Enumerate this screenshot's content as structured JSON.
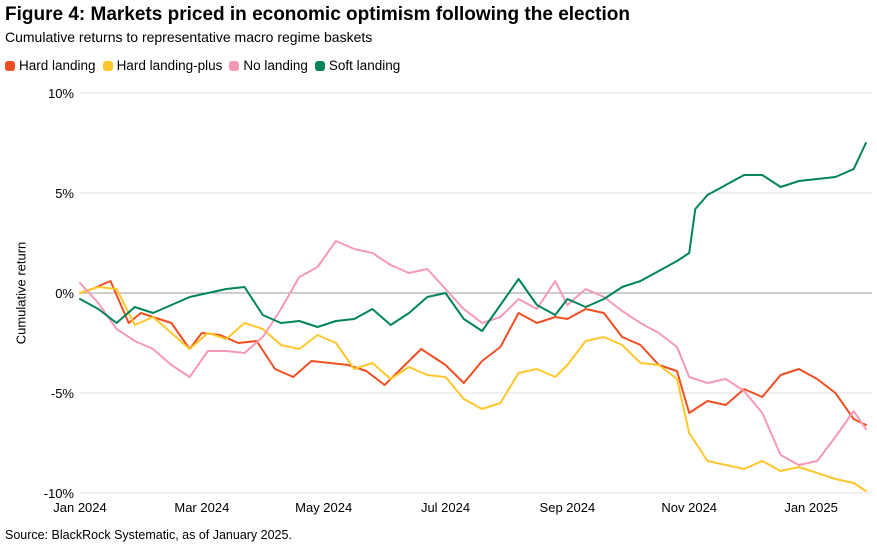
{
  "chart_data": {
    "type": "line",
    "title": "Figure 4: Markets priced in economic optimism following the election",
    "subtitle": "Cumulative returns to representative macro regime baskets",
    "ylabel": "Cumulative return",
    "xlabel": "",
    "ylim": [
      -10,
      10
    ],
    "y_ticks": [
      "10%",
      "5%",
      "0%",
      "-5%",
      "-10%"
    ],
    "y_tick_values": [
      10,
      5,
      0,
      -5,
      -10
    ],
    "x_ticks": [
      "Jan 2024",
      "Mar 2024",
      "May 2024",
      "Jul 2024",
      "Sep 2024",
      "Nov 2024",
      "Jan 2025"
    ],
    "x_tick_values": [
      0,
      2,
      4,
      6,
      8,
      10,
      12
    ],
    "xlim": [
      0,
      13
    ],
    "x_unit": "months since Jan 2024",
    "grid": "horizontal",
    "legend_position": "top-left",
    "series": [
      {
        "name": "Hard landing",
        "color": "#f04e23",
        "x": [
          0.0,
          0.2,
          0.5,
          0.8,
          1.0,
          1.2,
          1.5,
          1.8,
          2.0,
          2.3,
          2.6,
          2.9,
          3.2,
          3.5,
          3.8,
          4.1,
          4.4,
          4.7,
          5.0,
          5.3,
          5.6,
          6.0,
          6.3,
          6.6,
          6.9,
          7.2,
          7.5,
          7.8,
          8.0,
          8.3,
          8.6,
          8.9,
          9.2,
          9.5,
          9.8,
          10.0,
          10.3,
          10.6,
          10.9,
          11.2,
          11.5,
          11.8,
          12.1,
          12.4,
          12.7,
          12.9
        ],
        "y": [
          0.0,
          0.2,
          0.6,
          -1.5,
          -1.0,
          -1.2,
          -1.5,
          -2.8,
          -2.0,
          -2.1,
          -2.5,
          -2.4,
          -3.8,
          -4.2,
          -3.4,
          -3.5,
          -3.6,
          -3.9,
          -4.6,
          -3.7,
          -2.8,
          -3.6,
          -4.5,
          -3.4,
          -2.7,
          -1.0,
          -1.5,
          -1.2,
          -1.3,
          -0.8,
          -1.0,
          -2.2,
          -2.6,
          -3.6,
          -3.9,
          -6.0,
          -5.4,
          -5.6,
          -4.8,
          -5.2,
          -4.1,
          -3.8,
          -4.3,
          -5.0,
          -6.3,
          -6.6
        ]
      },
      {
        "name": "Hard landing-plus",
        "color": "#ffc72c",
        "x": [
          0.0,
          0.3,
          0.6,
          0.9,
          1.2,
          1.5,
          1.8,
          2.1,
          2.4,
          2.7,
          3.0,
          3.3,
          3.6,
          3.9,
          4.2,
          4.5,
          4.8,
          5.1,
          5.4,
          5.7,
          6.0,
          6.3,
          6.6,
          6.9,
          7.2,
          7.5,
          7.8,
          8.0,
          8.3,
          8.6,
          8.9,
          9.2,
          9.5,
          9.8,
          10.0,
          10.3,
          10.6,
          10.9,
          11.2,
          11.5,
          11.8,
          12.1,
          12.4,
          12.7,
          12.9
        ],
        "y": [
          0.0,
          0.3,
          0.2,
          -1.6,
          -1.2,
          -2.0,
          -2.8,
          -2.0,
          -2.3,
          -1.5,
          -1.8,
          -2.6,
          -2.8,
          -2.1,
          -2.5,
          -3.8,
          -3.5,
          -4.3,
          -3.7,
          -4.1,
          -4.2,
          -5.3,
          -5.8,
          -5.5,
          -4.0,
          -3.8,
          -4.2,
          -3.6,
          -2.4,
          -2.2,
          -2.6,
          -3.5,
          -3.6,
          -4.3,
          -7.0,
          -8.4,
          -8.6,
          -8.8,
          -8.4,
          -8.9,
          -8.7,
          -9.0,
          -9.3,
          -9.5,
          -9.9
        ]
      },
      {
        "name": "No landing",
        "color": "#f59ab4",
        "x": [
          0.0,
          0.3,
          0.6,
          0.9,
          1.2,
          1.5,
          1.8,
          2.1,
          2.4,
          2.7,
          3.0,
          3.3,
          3.6,
          3.9,
          4.2,
          4.5,
          4.8,
          5.1,
          5.4,
          5.7,
          6.0,
          6.3,
          6.6,
          6.9,
          7.2,
          7.5,
          7.8,
          8.0,
          8.3,
          8.6,
          8.9,
          9.2,
          9.5,
          9.8,
          10.0,
          10.3,
          10.6,
          10.9,
          11.2,
          11.5,
          11.8,
          12.1,
          12.4,
          12.7,
          12.9
        ],
        "y": [
          0.5,
          -0.5,
          -1.8,
          -2.4,
          -2.8,
          -3.6,
          -4.2,
          -2.9,
          -2.9,
          -3.0,
          -2.2,
          -0.8,
          0.8,
          1.3,
          2.6,
          2.2,
          2.0,
          1.4,
          1.0,
          1.2,
          0.2,
          -0.8,
          -1.5,
          -1.2,
          -0.3,
          -0.8,
          0.6,
          -0.6,
          0.2,
          -0.2,
          -0.9,
          -1.5,
          -2.0,
          -2.7,
          -4.2,
          -4.5,
          -4.3,
          -4.9,
          -6.0,
          -8.1,
          -8.6,
          -8.4,
          -7.2,
          -5.9,
          -6.8
        ]
      },
      {
        "name": "Soft landing",
        "color": "#00845b",
        "x": [
          0.0,
          0.3,
          0.6,
          0.9,
          1.2,
          1.5,
          1.8,
          2.1,
          2.4,
          2.7,
          3.0,
          3.3,
          3.6,
          3.9,
          4.2,
          4.5,
          4.8,
          5.1,
          5.4,
          5.7,
          6.0,
          6.3,
          6.6,
          6.9,
          7.2,
          7.5,
          7.8,
          8.0,
          8.3,
          8.6,
          8.9,
          9.2,
          9.5,
          9.8,
          10.0,
          10.1,
          10.3,
          10.6,
          10.9,
          11.2,
          11.5,
          11.8,
          12.1,
          12.4,
          12.7,
          12.9
        ],
        "y": [
          -0.3,
          -0.8,
          -1.5,
          -0.7,
          -1.0,
          -0.6,
          -0.2,
          0.0,
          0.2,
          0.3,
          -1.1,
          -1.5,
          -1.4,
          -1.7,
          -1.4,
          -1.3,
          -0.8,
          -1.6,
          -1.0,
          -0.2,
          0.0,
          -1.3,
          -1.9,
          -0.6,
          0.7,
          -0.6,
          -1.1,
          -0.3,
          -0.7,
          -0.3,
          0.3,
          0.6,
          1.1,
          1.6,
          2.0,
          4.2,
          4.9,
          5.4,
          5.9,
          5.9,
          5.3,
          5.6,
          5.7,
          5.8,
          6.2,
          7.5
        ]
      }
    ]
  },
  "source": "Source: BlackRock Systematic, as of January 2025.",
  "colors": {
    "zero_line": "#b0b0b0",
    "grid": "#e3e3e3"
  }
}
